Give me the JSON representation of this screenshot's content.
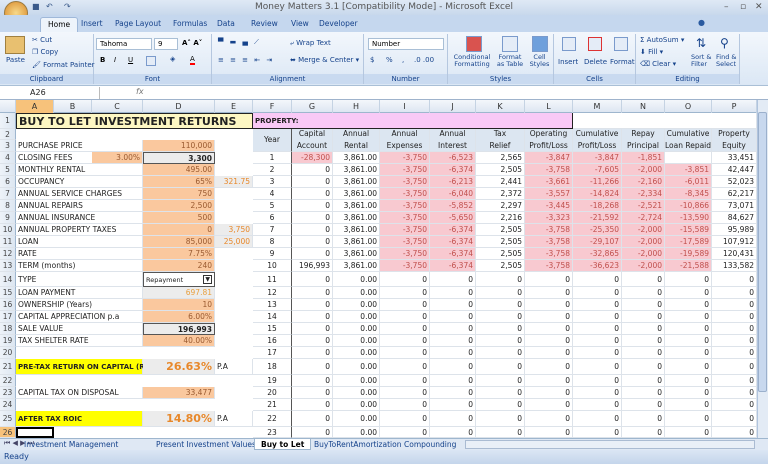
{
  "window": {
    "title": "Money Matters 3.1  [Compatibility Mode] - Microsoft Excel"
  },
  "ribbon_tabs": [
    "Home",
    "Insert",
    "Page Layout",
    "Formulas",
    "Data",
    "Review",
    "View",
    "Developer"
  ],
  "active_tab": "Home",
  "ribbon": {
    "clipboard": {
      "label": "Clipboard",
      "paste": "Paste",
      "cut": "Cut",
      "copy": "Copy",
      "format_painter": "Format Painter"
    },
    "font": {
      "label": "Font",
      "font_name": "Tahoma",
      "font_size": "9",
      "bold": "B",
      "italic": "I",
      "underline": "U"
    },
    "alignment": {
      "label": "Alignment",
      "wrap_text": "Wrap Text",
      "merge_center": "Merge & Center"
    },
    "number": {
      "label": "Number",
      "format": "Number",
      "currency": "$",
      "percent": "%",
      "comma": ","
    },
    "styles": {
      "label": "Styles",
      "conditional": "Conditional Formatting",
      "format_table": "Format as Table",
      "cell_styles": "Cell Styles"
    },
    "cells": {
      "label": "Cells",
      "insert": "Insert",
      "delete": "Delete",
      "format": "Format"
    },
    "editing": {
      "label": "Editing",
      "autosum": "AutoSum",
      "fill": "Fill",
      "clear": "Clear",
      "sort_filter": "Sort & Filter",
      "find_select": "Find & Select"
    }
  },
  "formula_bar": {
    "name_box": "A26",
    "fx": "fx",
    "value": ""
  },
  "columns": [
    "A",
    "B",
    "C",
    "D",
    "E",
    "F",
    "G",
    "H",
    "I",
    "J",
    "K",
    "L",
    "M",
    "N",
    "O",
    "P"
  ],
  "title": "BUY TO LET INVESTMENT RETURNS",
  "property_label": "PROPERTY:",
  "left": [
    {
      "row": 3,
      "label": "PURCHASE PRICE",
      "d": "110,000"
    },
    {
      "row": 4,
      "label": "CLOSING FEES",
      "c": "3.00%",
      "d": "3,300"
    },
    {
      "row": 5,
      "label": "MONTHLY RENTAL",
      "d": "495.00"
    },
    {
      "row": 6,
      "label": "OCCUPANCY",
      "d": "65%",
      "e": "321.75"
    },
    {
      "row": 7,
      "label": "ANNUAL SERVICE CHARGES",
      "d": "750"
    },
    {
      "row": 8,
      "label": "ANNUAL REPAIRS",
      "d": "2,500"
    },
    {
      "row": 9,
      "label": "ANNUAL INSURANCE",
      "d": "500"
    },
    {
      "row": 10,
      "label": "ANNUAL PROPERTY TAXES",
      "d": "0",
      "e": "3,750"
    },
    {
      "row": 11,
      "label": "LOAN",
      "d": "85,000",
      "e": "25,000"
    },
    {
      "row": 12,
      "label": "RATE",
      "d": "7.75%"
    },
    {
      "row": 13,
      "label": "TERM (months)",
      "d": "240"
    },
    {
      "row": 14,
      "label": "TYPE",
      "d": "Repayment"
    },
    {
      "row": 15,
      "label": "LOAN PAYMENT",
      "d": "697.81"
    },
    {
      "row": 16,
      "label": "OWNERSHIP (Years)",
      "d": "10"
    },
    {
      "row": 17,
      "label": "CAPITAL APPRECIATION p.a",
      "d": "6.00%"
    },
    {
      "row": 18,
      "label": "SALE VALUE",
      "d": "196,993"
    },
    {
      "row": 19,
      "label": "TAX SHELTER RATE",
      "d": "40.00%"
    },
    {
      "row": 21,
      "label": "PRE-TAX RETURN ON CAPITAL (ROIC)",
      "d": "26.63%",
      "e": "P.A"
    },
    {
      "row": 23,
      "label": "CAPITAL TAX ON DISPOSAL",
      "d": "33,477"
    },
    {
      "row": 25,
      "label": "AFTER TAX ROIC",
      "d": "14.80%",
      "e": "P.A"
    }
  ],
  "table_headers": [
    [
      "",
      "Year"
    ],
    [
      "Capital",
      "Account"
    ],
    [
      "Annual",
      "Rental"
    ],
    [
      "Annual",
      "Expenses"
    ],
    [
      "Annual",
      "Interest"
    ],
    [
      "Tax",
      "Relief"
    ],
    [
      "Operating",
      "Profit/Loss"
    ],
    [
      "Cumulative",
      "Profit/Loss"
    ],
    [
      "Repay",
      "Principal"
    ],
    [
      "Cumulative",
      "Loan Repaid"
    ],
    [
      "Property",
      "Equity"
    ]
  ],
  "table_rows": [
    [
      "1",
      "-28,300",
      "3,861.00",
      "-3,750",
      "-6,523",
      "2,565",
      "-3,847",
      "-3,847",
      "-1,851",
      "",
      "33,451"
    ],
    [
      "2",
      "0",
      "3,861.00",
      "-3,750",
      "-6,374",
      "2,505",
      "-3,758",
      "-7,605",
      "-2,000",
      "-3,851",
      "42,447"
    ],
    [
      "3",
      "0",
      "3,861.00",
      "-3,750",
      "-6,213",
      "2,441",
      "-3,661",
      "-11,266",
      "-2,160",
      "-6,011",
      "52,023"
    ],
    [
      "4",
      "0",
      "3,861.00",
      "-3,750",
      "-6,040",
      "2,372",
      "-3,557",
      "-14,824",
      "-2,334",
      "-8,345",
      "62,217"
    ],
    [
      "5",
      "0",
      "3,861.00",
      "-3,750",
      "-5,852",
      "2,297",
      "-3,445",
      "-18,268",
      "-2,521",
      "-10,866",
      "73,071"
    ],
    [
      "6",
      "0",
      "3,861.00",
      "-3,750",
      "-5,650",
      "2,216",
      "-3,323",
      "-21,592",
      "-2,724",
      "-13,590",
      "84,627"
    ],
    [
      "7",
      "0",
      "3,861.00",
      "-3,750",
      "-6,374",
      "2,505",
      "-3,758",
      "-25,350",
      "-2,000",
      "-15,589",
      "95,989"
    ],
    [
      "8",
      "0",
      "3,861.00",
      "-3,750",
      "-6,374",
      "2,505",
      "-3,758",
      "-29,107",
      "-2,000",
      "-17,589",
      "107,912"
    ],
    [
      "9",
      "0",
      "3,861.00",
      "-3,750",
      "-6,374",
      "2,505",
      "-3,758",
      "-32,865",
      "-2,000",
      "-19,589",
      "120,431"
    ],
    [
      "10",
      "196,993",
      "3,861.00",
      "-3,750",
      "-6,374",
      "2,505",
      "-3,758",
      "-36,623",
      "-2,000",
      "-21,588",
      "133,582"
    ],
    [
      "11",
      "0",
      "0.00",
      "0",
      "0",
      "0",
      "0",
      "0",
      "0",
      "0",
      "0"
    ],
    [
      "12",
      "0",
      "0.00",
      "0",
      "0",
      "0",
      "0",
      "0",
      "0",
      "0",
      "0"
    ],
    [
      "13",
      "0",
      "0.00",
      "0",
      "0",
      "0",
      "0",
      "0",
      "0",
      "0",
      "0"
    ],
    [
      "14",
      "0",
      "0.00",
      "0",
      "0",
      "0",
      "0",
      "0",
      "0",
      "0",
      "0"
    ],
    [
      "15",
      "0",
      "0.00",
      "0",
      "0",
      "0",
      "0",
      "0",
      "0",
      "0",
      "0"
    ],
    [
      "16",
      "0",
      "0.00",
      "0",
      "0",
      "0",
      "0",
      "0",
      "0",
      "0",
      "0"
    ],
    [
      "17",
      "0",
      "0.00",
      "0",
      "0",
      "0",
      "0",
      "0",
      "0",
      "0",
      "0"
    ],
    [
      "18",
      "0",
      "0.00",
      "0",
      "0",
      "0",
      "0",
      "0",
      "0",
      "0",
      "0"
    ],
    [
      "19",
      "0",
      "0.00",
      "0",
      "0",
      "0",
      "0",
      "0",
      "0",
      "0",
      "0"
    ],
    [
      "20",
      "0",
      "0.00",
      "0",
      "0",
      "0",
      "0",
      "0",
      "0",
      "0",
      "0"
    ],
    [
      "21",
      "0",
      "0.00",
      "0",
      "0",
      "0",
      "0",
      "0",
      "0",
      "0",
      "0"
    ],
    [
      "22",
      "0",
      "0.00",
      "0",
      "0",
      "0",
      "0",
      "0",
      "0",
      "0",
      "0"
    ],
    [
      "23",
      "0",
      "0.00",
      "0",
      "0",
      "0",
      "0",
      "0",
      "0",
      "0",
      "0"
    ]
  ],
  "sheet_tabs": [
    "Investment Management",
    "Present Investment Values",
    "Buy to Let",
    "BuyToRentAmortization",
    "Compounding"
  ],
  "active_sheet": "Buy to Let",
  "status": "Ready",
  "colors": {
    "input_fill": "#fac89e",
    "negative_fill": "#f8c9d0",
    "highlight": "#ffff00",
    "accent_text": "#e8882a"
  }
}
